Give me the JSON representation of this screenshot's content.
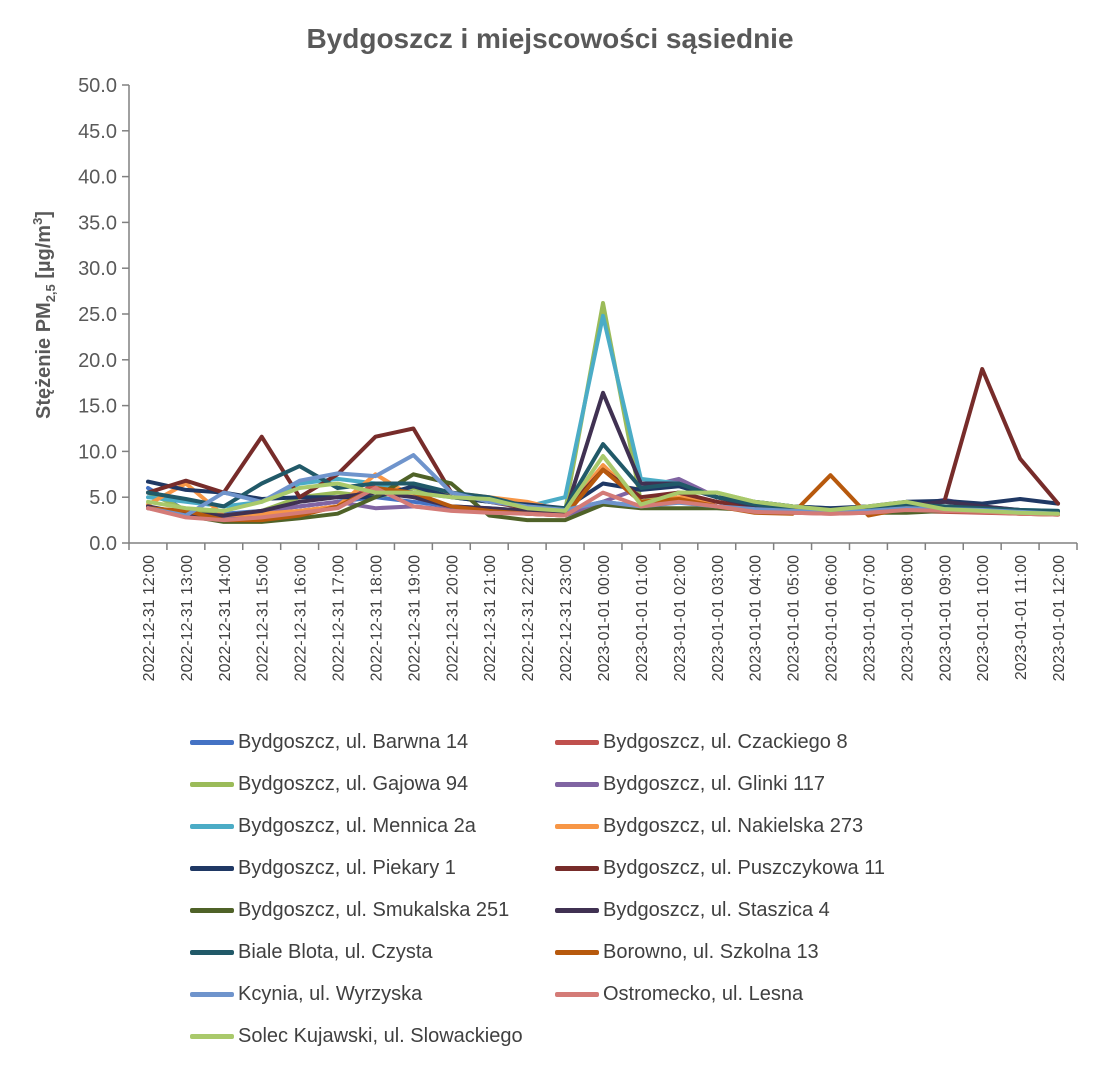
{
  "chart_data": {
    "type": "line",
    "title": "Bydgoszcz i miejscowości sąsiednie",
    "ylabel": "Stężenie PM",
    "ylabel_sub": "2,5",
    "ylabel_unit": " [µg/m",
    "ylabel_sup": "3",
    "ylabel_end": "]",
    "ylim": [
      0,
      50
    ],
    "yticks": [
      "0.0",
      "5.0",
      "10.0",
      "15.0",
      "20.0",
      "25.0",
      "30.0",
      "35.0",
      "40.0",
      "45.0",
      "50.0"
    ],
    "grid": false,
    "legend_position": "bottom",
    "categories": [
      "2022-12-31 12:00",
      "2022-12-31 13:00",
      "2022-12-31 14:00",
      "2022-12-31 15:00",
      "2022-12-31 16:00",
      "2022-12-31 17:00",
      "2022-12-31 18:00",
      "2022-12-31 19:00",
      "2022-12-31 20:00",
      "2022-12-31 21:00",
      "2022-12-31 22:00",
      "2022-12-31 23:00",
      "2023-01-01 00:00",
      "2023-01-01 01:00",
      "2023-01-01 02:00",
      "2023-01-01 03:00",
      "2023-01-01 04:00",
      "2023-01-01 05:00",
      "2023-01-01 06:00",
      "2023-01-01 07:00",
      "2023-01-01 08:00",
      "2023-01-01 09:00",
      "2023-01-01 10:00",
      "2023-01-01 11:00",
      "2023-01-01 12:00"
    ],
    "series": [
      {
        "name": "Bydgoszcz, ul. Barwna 14",
        "color": "#4472C4",
        "values": [
          6.0,
          3.5,
          3.2,
          3.5,
          4.0,
          4.5,
          5.0,
          4.5,
          4.0,
          3.8,
          3.5,
          3.5,
          4.5,
          4.0,
          4.5,
          4.0,
          3.5,
          3.4,
          3.3,
          3.4,
          3.6,
          3.8,
          3.7,
          3.5,
          3.4
        ]
      },
      {
        "name": "Bydgoszcz, ul. Czackiego 8",
        "color": "#C0504D",
        "values": [
          4.0,
          3.0,
          2.8,
          3.0,
          3.5,
          4.0,
          6.5,
          5.5,
          3.8,
          3.5,
          3.2,
          3.0,
          8.0,
          4.5,
          5.5,
          4.0,
          3.5,
          3.3,
          3.2,
          3.3,
          3.5,
          3.4,
          3.3,
          3.2,
          3.1
        ]
      },
      {
        "name": "Bydgoszcz, ul. Gajowa 94",
        "color": "#9BBB59",
        "values": [
          5.5,
          3.6,
          3.0,
          3.5,
          5.0,
          5.5,
          5.0,
          6.0,
          5.0,
          4.5,
          4.0,
          3.5,
          26.2,
          4.5,
          5.5,
          5.5,
          4.5,
          4.0,
          3.6,
          3.8,
          4.5,
          3.8,
          3.6,
          3.5,
          3.4
        ]
      },
      {
        "name": "Bydgoszcz, ul. Glinki 117",
        "color": "#8064A2",
        "values": [
          4.0,
          3.0,
          2.8,
          3.5,
          4.0,
          4.5,
          3.8,
          4.0,
          3.6,
          3.5,
          3.3,
          3.0,
          4.5,
          6.0,
          7.0,
          5.0,
          4.0,
          3.5,
          3.4,
          3.5,
          4.0,
          4.7,
          4.0,
          3.6,
          3.3
        ]
      },
      {
        "name": "Bydgoszcz, ul. Mennica 2a",
        "color": "#4BACC6",
        "values": [
          5.0,
          4.5,
          4.0,
          4.5,
          6.5,
          7.0,
          6.5,
          5.5,
          5.0,
          4.5,
          4.0,
          5.0,
          24.8,
          7.0,
          6.5,
          5.0,
          4.5,
          4.0,
          3.8,
          3.9,
          4.3,
          4.0,
          3.8,
          3.6,
          3.5
        ]
      },
      {
        "name": "Bydgoszcz, ul. Nakielska 273",
        "color": "#F79646",
        "values": [
          4.2,
          6.5,
          3.0,
          3.2,
          3.5,
          4.0,
          7.5,
          5.0,
          5.5,
          5.0,
          4.5,
          3.5,
          8.5,
          4.5,
          5.0,
          4.5,
          4.0,
          3.7,
          3.5,
          3.6,
          4.0,
          3.8,
          3.6,
          3.4,
          3.2
        ]
      },
      {
        "name": "Bydgoszcz, ul. Piekary 1",
        "color": "#1F3864",
        "values": [
          6.7,
          5.8,
          5.5,
          4.8,
          5.0,
          5.0,
          5.0,
          6.2,
          5.0,
          4.5,
          4.2,
          3.8,
          6.5,
          5.8,
          6.2,
          5.0,
          4.5,
          4.0,
          3.8,
          4.0,
          4.5,
          4.6,
          4.3,
          4.8,
          4.3
        ]
      },
      {
        "name": "Bydgoszcz, ul. Puszczykowa 11",
        "color": "#772C2A",
        "values": [
          5.5,
          6.8,
          5.5,
          11.6,
          5.0,
          7.5,
          11.6,
          12.5,
          5.5,
          4.5,
          3.8,
          3.5,
          8.0,
          5.0,
          5.5,
          4.5,
          3.8,
          3.5,
          3.4,
          3.6,
          4.0,
          4.5,
          19.0,
          9.2,
          4.3
        ]
      },
      {
        "name": "Bydgoszcz, ul. Smukalska 251",
        "color": "#4F6228",
        "values": [
          4.0,
          3.0,
          2.3,
          2.3,
          2.7,
          3.2,
          5.0,
          7.5,
          6.5,
          3.0,
          2.5,
          2.5,
          4.2,
          3.8,
          3.8,
          3.8,
          3.6,
          3.4,
          3.3,
          3.3,
          3.3,
          3.5,
          3.4,
          3.3,
          3.2
        ]
      },
      {
        "name": "Bydgoszcz, ul. Staszica 4",
        "color": "#403152",
        "values": [
          4.0,
          3.2,
          3.0,
          3.5,
          4.5,
          5.0,
          5.5,
          5.0,
          4.0,
          3.8,
          3.5,
          3.2,
          16.4,
          6.5,
          6.5,
          5.0,
          4.0,
          3.6,
          3.4,
          3.6,
          4.0,
          4.5,
          4.0,
          3.6,
          3.3
        ]
      },
      {
        "name": "Biale Blota, ul. Czysta",
        "color": "#215968",
        "values": [
          5.5,
          4.8,
          4.0,
          6.5,
          8.4,
          6.0,
          6.5,
          6.5,
          5.5,
          5.0,
          4.0,
          3.8,
          10.8,
          6.0,
          6.5,
          5.0,
          4.2,
          3.8,
          3.6,
          3.8,
          4.2,
          4.0,
          3.8,
          3.6,
          3.5
        ]
      },
      {
        "name": "Borowno, ul. Szkolna 13",
        "color": "#B7590D",
        "values": [
          3.8,
          3.5,
          2.5,
          2.5,
          3.0,
          4.0,
          6.0,
          5.5,
          4.0,
          3.5,
          3.2,
          3.0,
          8.0,
          4.5,
          4.8,
          4.0,
          3.3,
          3.2,
          7.4,
          3.0,
          3.8,
          3.5,
          3.4,
          3.2,
          3.1
        ]
      },
      {
        "name": "Kcynia, ul. Wyrzyska",
        "color": "#6F94CC",
        "values": [
          3.8,
          3.0,
          5.5,
          4.5,
          6.8,
          7.6,
          7.3,
          9.6,
          5.5,
          4.5,
          4.0,
          3.6,
          4.5,
          4.0,
          4.4,
          4.0,
          3.7,
          3.5,
          3.4,
          3.5,
          3.8,
          3.7,
          3.6,
          3.4,
          3.2
        ]
      },
      {
        "name": "Ostromecko, ul. Lesna",
        "color": "#D47B77",
        "values": [
          3.8,
          2.8,
          2.5,
          2.8,
          3.3,
          3.8,
          6.0,
          4.0,
          3.5,
          3.3,
          3.2,
          3.0,
          5.5,
          4.0,
          4.5,
          4.0,
          3.4,
          3.3,
          3.2,
          3.3,
          3.6,
          3.5,
          3.4,
          3.2,
          3.1
        ]
      },
      {
        "name": "Solec Kujawski, ul. Slowackiego",
        "color": "#A9C96B",
        "values": [
          4.5,
          3.8,
          3.5,
          4.5,
          6.0,
          6.5,
          5.5,
          5.5,
          5.0,
          4.8,
          3.8,
          3.5,
          9.5,
          4.2,
          5.5,
          5.5,
          4.5,
          4.0,
          3.6,
          4.0,
          4.5,
          3.7,
          3.5,
          3.3,
          3.2
        ]
      }
    ]
  }
}
